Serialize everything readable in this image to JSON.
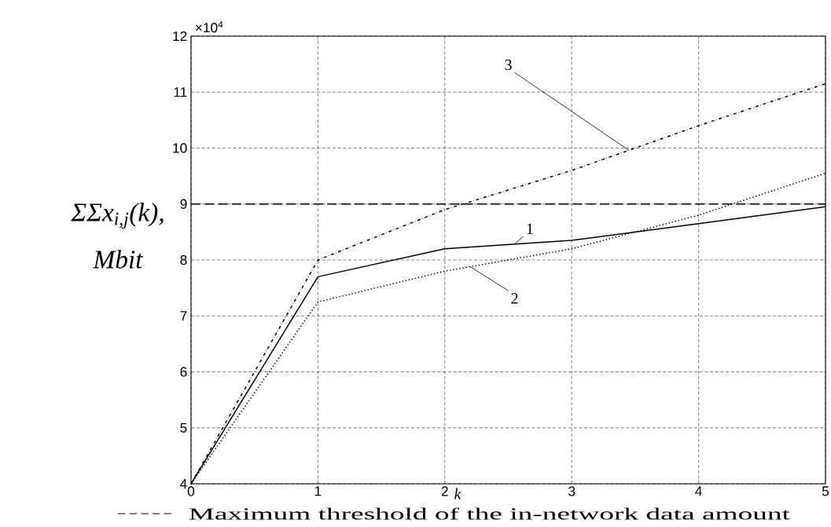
{
  "chart_data": {
    "type": "line",
    "xlabel": "k",
    "ylabel": "ΣΣx$_{i,j}$(k), Mbit",
    "x": [
      0,
      1,
      2,
      3,
      4,
      5
    ],
    "series": [
      {
        "name": "1",
        "color": "#000000",
        "line_style": "solid",
        "values": [
          4,
          7.7,
          8.2,
          8.35,
          8.65,
          8.95
        ]
      },
      {
        "name": "2",
        "color": "#000000",
        "line_style": "dotted",
        "values": [
          4,
          7.25,
          7.8,
          8.2,
          8.8,
          9.55
        ]
      },
      {
        "name": "3",
        "color": "#000000",
        "line_style": "dashdot",
        "values": [
          4,
          8.0,
          8.9,
          9.6,
          10.4,
          11.15
        ]
      }
    ],
    "xlim": [
      0,
      5
    ],
    "ylim": [
      4,
      12
    ],
    "xticks": [
      0,
      1,
      2,
      3,
      4,
      5
    ],
    "yticks": [
      4,
      5,
      6,
      7,
      8,
      9,
      10,
      11,
      12
    ],
    "grid": true,
    "ref_lines": [
      {
        "axis": "y",
        "value": 9,
        "label": "Maximum threshold of the in-network data amount",
        "line_style": "dashed",
        "color": "#000000"
      }
    ],
    "annotations": [
      "×10$^{4}$"
    ]
  }
}
